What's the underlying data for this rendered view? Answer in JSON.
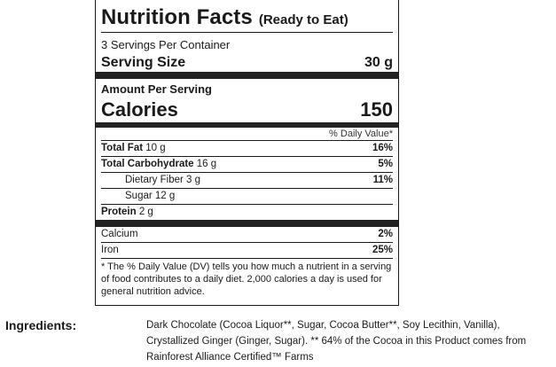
{
  "label": {
    "title": "Nutrition Facts",
    "title_note": "(Ready to Eat)",
    "servings_per_container": "3 Servings Per Container",
    "serving_size_label": "Serving Size",
    "serving_size_value": "30 g",
    "amount_per_serving": "Amount Per Serving",
    "calories_label": "Calories",
    "calories_value": "150",
    "dv_header": "% Daily Value*",
    "nutrients": [
      {
        "name": "Total Fat",
        "amount": "10 g",
        "dv": "16%"
      },
      {
        "name": "Total Carbohydrate",
        "amount": "16 g",
        "dv": "5%"
      },
      {
        "name": "Dietary Fiber",
        "amount": "3 g",
        "dv": "11%"
      },
      {
        "name": "Sugar",
        "amount": "12 g",
        "dv": ""
      },
      {
        "name": "Protein",
        "amount": "2 g",
        "dv": ""
      }
    ],
    "minerals": [
      {
        "name": "Calcium",
        "dv": "2%"
      },
      {
        "name": "Iron",
        "dv": "25%"
      }
    ],
    "footnote": "* The % Daily Value (DV) tells you how much a nutrient in a serving of food contributes to a daily diet. 2,000 calories a day is used for general nutrition advice."
  },
  "ingredients": {
    "label": "Ingredients:",
    "text": "Dark Chocolate (Cocoa Liquor**, Sugar, Cocoa Butter**, Soy Lecithin, Vanilla), Crystallized Ginger (Ginger, Sugar). ** 64% of the Cocoa in this Product comes from Rainforest Alliance Certified™ Farms"
  }
}
